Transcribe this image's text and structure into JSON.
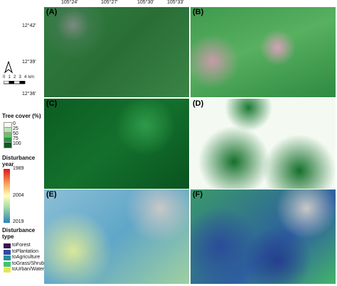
{
  "map": {
    "longitude_ticks": [
      "105°24'",
      "105°27'",
      "105°30'",
      "105°33'"
    ],
    "latitude_ticks": [
      "12°42'",
      "12°39'",
      "12°36'"
    ],
    "panels": [
      "(A)",
      "(B)",
      "(C)",
      "(D)",
      "(E)",
      "(F)"
    ],
    "scale_bar": {
      "ticks": [
        "0",
        "1",
        "2",
        "3",
        "4"
      ],
      "unit": "km"
    }
  },
  "legend": {
    "tree_cover": {
      "title": "Tree cover (%)",
      "levels": [
        {
          "label": "0",
          "color": "#f3fbf1"
        },
        {
          "label": "25",
          "color": "#b8e3b0"
        },
        {
          "label": "50",
          "color": "#6cc06a"
        },
        {
          "label": "75",
          "color": "#2b9443"
        },
        {
          "label": "100",
          "color": "#0b5a22"
        }
      ]
    },
    "disturbance_year": {
      "title": "Disturbance year",
      "labels": [
        "1989",
        "2004",
        "2019"
      ]
    },
    "disturbance_type": {
      "title": "Disturbance type",
      "classes": [
        {
          "label": "toForest",
          "color": "#3a1452"
        },
        {
          "label": "toPlantation",
          "color": "#2f4f9a"
        },
        {
          "label": "toAgriculture",
          "color": "#2a8f9a"
        },
        {
          "label": "toGrass/Shrub",
          "color": "#45c46a"
        },
        {
          "label": "toUrban/Water",
          "color": "#e8e45a"
        }
      ]
    }
  }
}
